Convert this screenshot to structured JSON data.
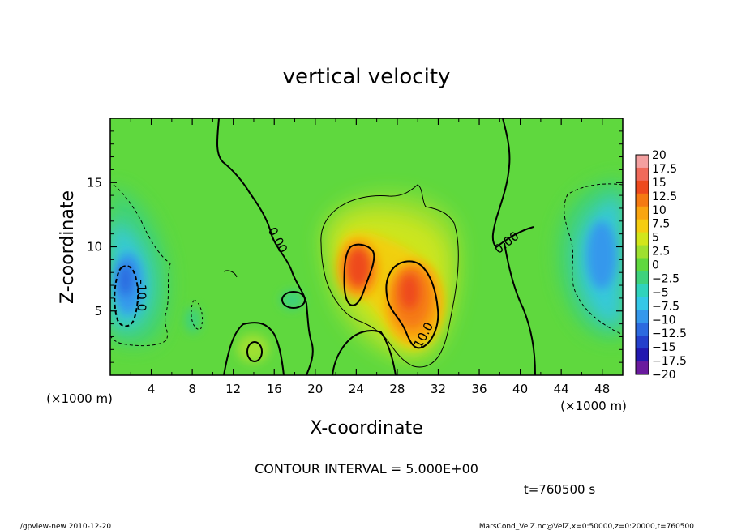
{
  "chart_data": {
    "type": "heatmap",
    "title": "vertical velocity",
    "xlabel": "X-coordinate",
    "ylabel": "Z-coordinate",
    "x_unit_label_left": "(×1000 m)",
    "x_unit_label_right": "(×1000 m)",
    "xlim": [
      0,
      50
    ],
    "ylim": [
      0,
      20
    ],
    "x_ticks": [
      4,
      8,
      12,
      16,
      20,
      24,
      28,
      32,
      36,
      40,
      44,
      48
    ],
    "y_ticks": [
      5,
      10,
      15
    ],
    "contour_interval_text": "CONTOUR INTERVAL = 5.000E+00",
    "time_text": "t=760500 s",
    "footer_left": "./gpview-new  2010-12-20",
    "footer_right": "MarsCond_VelZ.nc@VelZ,x=0:50000,z=0:20000,t=760500",
    "contour_labels": [
      {
        "text": "0.00",
        "x": 16.3,
        "y": 10.5,
        "angle": 62
      },
      {
        "text": "0.00",
        "x": 38.7,
        "y": 10.3,
        "angle": -38
      },
      {
        "text": "10.0",
        "x": 30.6,
        "y": 3.1,
        "angle": -62
      },
      {
        "text": "-10.0",
        "x": 3.0,
        "y": 6.2,
        "angle": 90
      }
    ],
    "colorbar": {
      "levels": [
        20,
        17.5,
        15,
        12.5,
        10,
        7.5,
        5,
        2.5,
        0,
        -2.5,
        -5,
        -7.5,
        -10,
        -12.5,
        -15,
        -17.5,
        -20
      ],
      "labels": [
        "20",
        "17.5",
        "15",
        "12.5",
        "10",
        "7.5",
        "5",
        "2.5",
        "0",
        "−2.5",
        "−5",
        "−7.5",
        "−10",
        "−12.5",
        "−15",
        "−17.5",
        "−20"
      ],
      "colors": [
        "#f4a0a0",
        "#f06a5a",
        "#ee4a1e",
        "#f57a12",
        "#f9a510",
        "#f5cd10",
        "#d2e61a",
        "#9ee030",
        "#5fd83e",
        "#3ed27c",
        "#30d3bc",
        "#34c8e8",
        "#3498ec",
        "#2c6ae0",
        "#2440cc",
        "#2218b0",
        "#6a1a9e"
      ]
    },
    "features": [
      {
        "kind": "positive_core",
        "x": 24.2,
        "y": 8.0,
        "peak": 15
      },
      {
        "kind": "positive_core",
        "x": 29.8,
        "y": 5.5,
        "peak": 15
      },
      {
        "kind": "negative_core",
        "x": 2.0,
        "y": 7.0,
        "peak": -12.5
      },
      {
        "kind": "negative_core",
        "x": 47.5,
        "y": 9.0,
        "peak": -10
      }
    ]
  }
}
